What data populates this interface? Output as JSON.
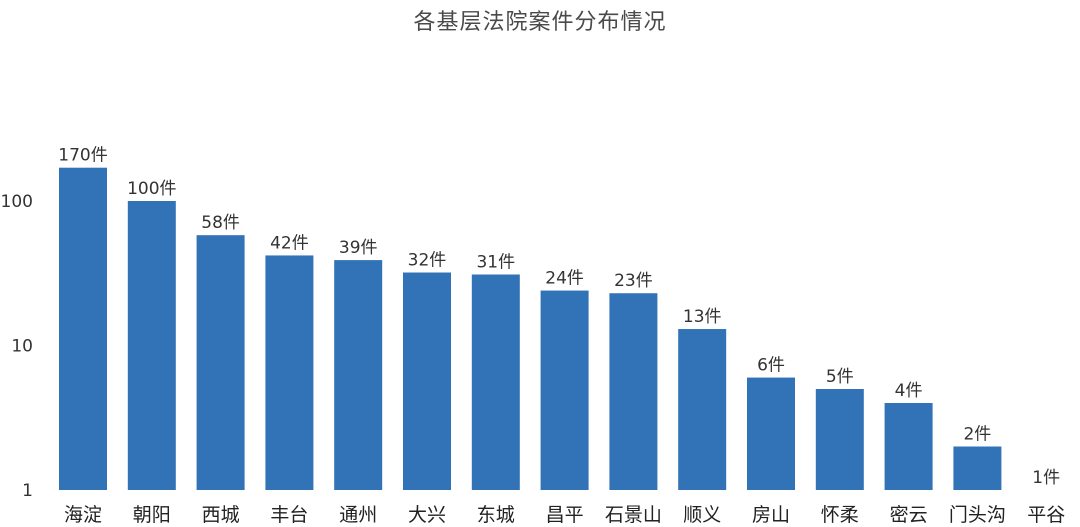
{
  "chart_data": {
    "type": "bar",
    "title": "各基层法院案件分布情况",
    "xlabel": "",
    "ylabel": "",
    "yscale": "log",
    "ylim": [
      1,
      300
    ],
    "yticks": [
      "1",
      "10",
      "100"
    ],
    "grid": false,
    "legend": "none",
    "bar_color": "#3273b8",
    "categories": [
      "海淀",
      "朝阳",
      "西城",
      "丰台",
      "通州",
      "大兴",
      "东城",
      "昌平",
      "石景山",
      "顺义",
      "房山",
      "怀柔",
      "密云",
      "门头沟",
      "平谷"
    ],
    "values": [
      170,
      100,
      58,
      42,
      39,
      32,
      31,
      24,
      23,
      13,
      6,
      5,
      4,
      2,
      1
    ],
    "data_labels": [
      "170件",
      "100件",
      "58件",
      "42件",
      "39件",
      "32件",
      "31件",
      "24件",
      "23件",
      "13件",
      "6件",
      "5件",
      "4件",
      "2件",
      "1件"
    ]
  }
}
